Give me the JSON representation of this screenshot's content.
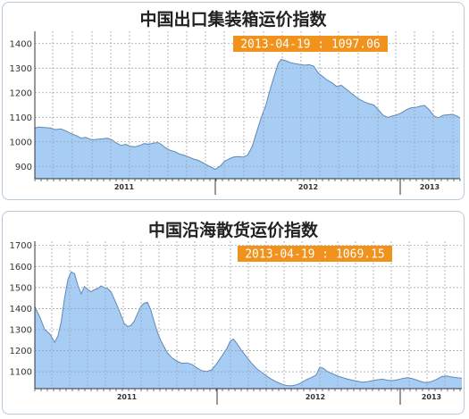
{
  "colors": {
    "area_fill": "#a8cdf4",
    "area_line": "#5f89b4",
    "badge_bg": "#f0921c",
    "badge_text": "#ffffff",
    "grid": "#9aa4ae"
  },
  "chart_data": [
    {
      "type": "area",
      "title": "中国出口集装箱运价指数",
      "annotation": "2013-04-19 : 1097.06",
      "y_ticks": [
        900,
        1000,
        1100,
        1200,
        1300,
        1400
      ],
      "ylim": [
        850,
        1450
      ],
      "x_tick_labels": [
        "2011",
        "2012",
        "2013"
      ],
      "grid": true,
      "points": [
        [
          0,
          1055
        ],
        [
          2,
          1060
        ],
        [
          6,
          1058
        ],
        [
          10,
          1056
        ],
        [
          13,
          1050
        ],
        [
          17,
          1052
        ],
        [
          20,
          1045
        ],
        [
          23,
          1035
        ],
        [
          27,
          1025
        ],
        [
          30,
          1015
        ],
        [
          33,
          1018
        ],
        [
          37,
          1008
        ],
        [
          40,
          1010
        ],
        [
          44,
          1012
        ],
        [
          47,
          1015
        ],
        [
          50,
          1008
        ],
        [
          53,
          995
        ],
        [
          56,
          985
        ],
        [
          59,
          990
        ],
        [
          62,
          982
        ],
        [
          65,
          980
        ],
        [
          68,
          985
        ],
        [
          71,
          993
        ],
        [
          74,
          990
        ],
        [
          77,
          995
        ],
        [
          80,
          997
        ],
        [
          82,
          990
        ],
        [
          85,
          975
        ],
        [
          88,
          965
        ],
        [
          91,
          960
        ],
        [
          94,
          950
        ],
        [
          97,
          945
        ],
        [
          100,
          938
        ],
        [
          103,
          930
        ],
        [
          106,
          925
        ],
        [
          109,
          915
        ],
        [
          112,
          905
        ],
        [
          115,
          895
        ],
        [
          117,
          888
        ],
        [
          120,
          900
        ],
        [
          123,
          920
        ],
        [
          126,
          930
        ],
        [
          129,
          938
        ],
        [
          132,
          940
        ],
        [
          135,
          938
        ],
        [
          138,
          945
        ],
        [
          141,
          980
        ],
        [
          144,
          1040
        ],
        [
          147,
          1100
        ],
        [
          150,
          1150
        ],
        [
          153,
          1220
        ],
        [
          156,
          1280
        ],
        [
          158,
          1320
        ],
        [
          160,
          1335
        ],
        [
          163,
          1330
        ],
        [
          166,
          1322
        ],
        [
          169,
          1318
        ],
        [
          172,
          1315
        ],
        [
          175,
          1312
        ],
        [
          178,
          1314
        ],
        [
          181,
          1308
        ],
        [
          184,
          1280
        ],
        [
          187,
          1265
        ],
        [
          190,
          1250
        ],
        [
          193,
          1240
        ],
        [
          196,
          1225
        ],
        [
          199,
          1230
        ],
        [
          202,
          1215
        ],
        [
          205,
          1200
        ],
        [
          208,
          1185
        ],
        [
          211,
          1172
        ],
        [
          214,
          1162
        ],
        [
          217,
          1155
        ],
        [
          220,
          1150
        ],
        [
          223,
          1130
        ],
        [
          226,
          1108
        ],
        [
          229,
          1100
        ],
        [
          232,
          1105
        ],
        [
          235,
          1110
        ],
        [
          238,
          1118
        ],
        [
          241,
          1130
        ],
        [
          244,
          1138
        ],
        [
          247,
          1140
        ],
        [
          250,
          1145
        ],
        [
          253,
          1148
        ],
        [
          256,
          1130
        ],
        [
          259,
          1105
        ],
        [
          262,
          1098
        ],
        [
          265,
          1108
        ],
        [
          268,
          1110
        ],
        [
          271,
          1112
        ],
        [
          274,
          1105
        ],
        [
          276,
          1097
        ]
      ]
    },
    {
      "type": "area",
      "title": "中国沿海散货运价指数",
      "annotation": "2013-04-19 : 1069.15",
      "y_ticks": [
        1100,
        1200,
        1300,
        1400,
        1500,
        1600,
        1700
      ],
      "ylim": [
        1020,
        1720
      ],
      "x_tick_labels": [
        "2011",
        "2012",
        "2013"
      ],
      "grid": true,
      "points": [
        [
          0,
          1410
        ],
        [
          3,
          1360
        ],
        [
          6,
          1300
        ],
        [
          9,
          1280
        ],
        [
          12,
          1240
        ],
        [
          14,
          1270
        ],
        [
          16,
          1340
        ],
        [
          18,
          1450
        ],
        [
          20,
          1540
        ],
        [
          22,
          1575
        ],
        [
          24,
          1565
        ],
        [
          26,
          1510
        ],
        [
          28,
          1470
        ],
        [
          30,
          1505
        ],
        [
          32,
          1490
        ],
        [
          34,
          1480
        ],
        [
          36,
          1490
        ],
        [
          38,
          1495
        ],
        [
          40,
          1508
        ],
        [
          42,
          1500
        ],
        [
          44,
          1495
        ],
        [
          46,
          1480
        ],
        [
          48,
          1445
        ],
        [
          50,
          1410
        ],
        [
          52,
          1370
        ],
        [
          54,
          1330
        ],
        [
          56,
          1315
        ],
        [
          58,
          1320
        ],
        [
          60,
          1340
        ],
        [
          62,
          1375
        ],
        [
          64,
          1410
        ],
        [
          66,
          1425
        ],
        [
          68,
          1430
        ],
        [
          70,
          1395
        ],
        [
          72,
          1340
        ],
        [
          74,
          1290
        ],
        [
          76,
          1250
        ],
        [
          78,
          1220
        ],
        [
          80,
          1190
        ],
        [
          83,
          1165
        ],
        [
          86,
          1150
        ],
        [
          89,
          1140
        ],
        [
          92,
          1142
        ],
        [
          95,
          1135
        ],
        [
          98,
          1118
        ],
        [
          101,
          1105
        ],
        [
          104,
          1102
        ],
        [
          107,
          1110
        ],
        [
          110,
          1140
        ],
        [
          113,
          1175
        ],
        [
          116,
          1210
        ],
        [
          118,
          1245
        ],
        [
          120,
          1255
        ],
        [
          122,
          1235
        ],
        [
          125,
          1200
        ],
        [
          128,
          1170
        ],
        [
          131,
          1140
        ],
        [
          134,
          1115
        ],
        [
          137,
          1098
        ],
        [
          140,
          1080
        ],
        [
          143,
          1065
        ],
        [
          146,
          1052
        ],
        [
          149,
          1042
        ],
        [
          152,
          1035
        ],
        [
          155,
          1033
        ],
        [
          158,
          1038
        ],
        [
          161,
          1048
        ],
        [
          164,
          1062
        ],
        [
          167,
          1072
        ],
        [
          170,
          1085
        ],
        [
          172,
          1120
        ],
        [
          174,
          1118
        ],
        [
          177,
          1100
        ],
        [
          180,
          1090
        ],
        [
          183,
          1080
        ],
        [
          186,
          1072
        ],
        [
          189,
          1065
        ],
        [
          192,
          1060
        ],
        [
          195,
          1055
        ],
        [
          198,
          1050
        ],
        [
          201,
          1053
        ],
        [
          204,
          1058
        ],
        [
          207,
          1062
        ],
        [
          210,
          1065
        ],
        [
          213,
          1060
        ],
        [
          216,
          1058
        ],
        [
          219,
          1062
        ],
        [
          222,
          1068
        ],
        [
          225,
          1072
        ],
        [
          228,
          1068
        ],
        [
          231,
          1060
        ],
        [
          234,
          1052
        ],
        [
          237,
          1048
        ],
        [
          240,
          1055
        ],
        [
          243,
          1065
        ],
        [
          246,
          1078
        ],
        [
          249,
          1080
        ],
        [
          252,
          1075
        ],
        [
          255,
          1072
        ],
        [
          258,
          1069
        ]
      ]
    }
  ]
}
